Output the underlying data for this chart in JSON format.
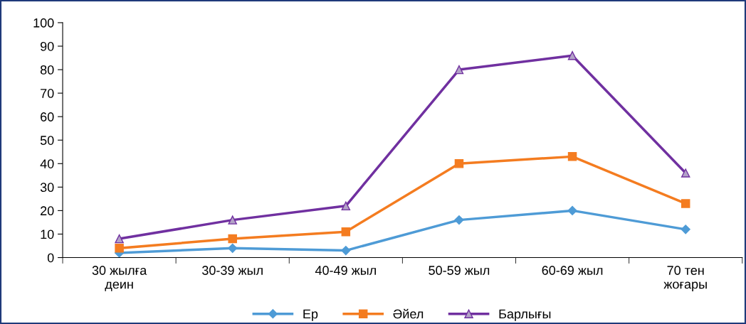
{
  "chart_data": {
    "type": "line",
    "categories": [
      "30 жылға\nдеин",
      "30-39 жыл",
      "40-49 жыл",
      "50-59 жыл",
      "60-69 жыл",
      "70 тен\nжоғары"
    ],
    "series": [
      {
        "name": "Ер",
        "color": "#4e9bd6",
        "marker": "diamond",
        "values": [
          2,
          4,
          3,
          16,
          20,
          12
        ]
      },
      {
        "name": "Әйел",
        "color": "#f47c20",
        "marker": "square",
        "values": [
          4,
          8,
          11,
          40,
          43,
          23
        ]
      },
      {
        "name": "Барлығы",
        "color": "#7030a0",
        "marker": "triangle",
        "values": [
          8,
          16,
          22,
          80,
          86,
          36
        ]
      }
    ],
    "ylim": [
      0,
      100
    ],
    "yticks": [
      0,
      10,
      20,
      30,
      40,
      50,
      60,
      70,
      80,
      90,
      100
    ],
    "grid": false,
    "legend": "bottom",
    "line_style": "solid"
  }
}
